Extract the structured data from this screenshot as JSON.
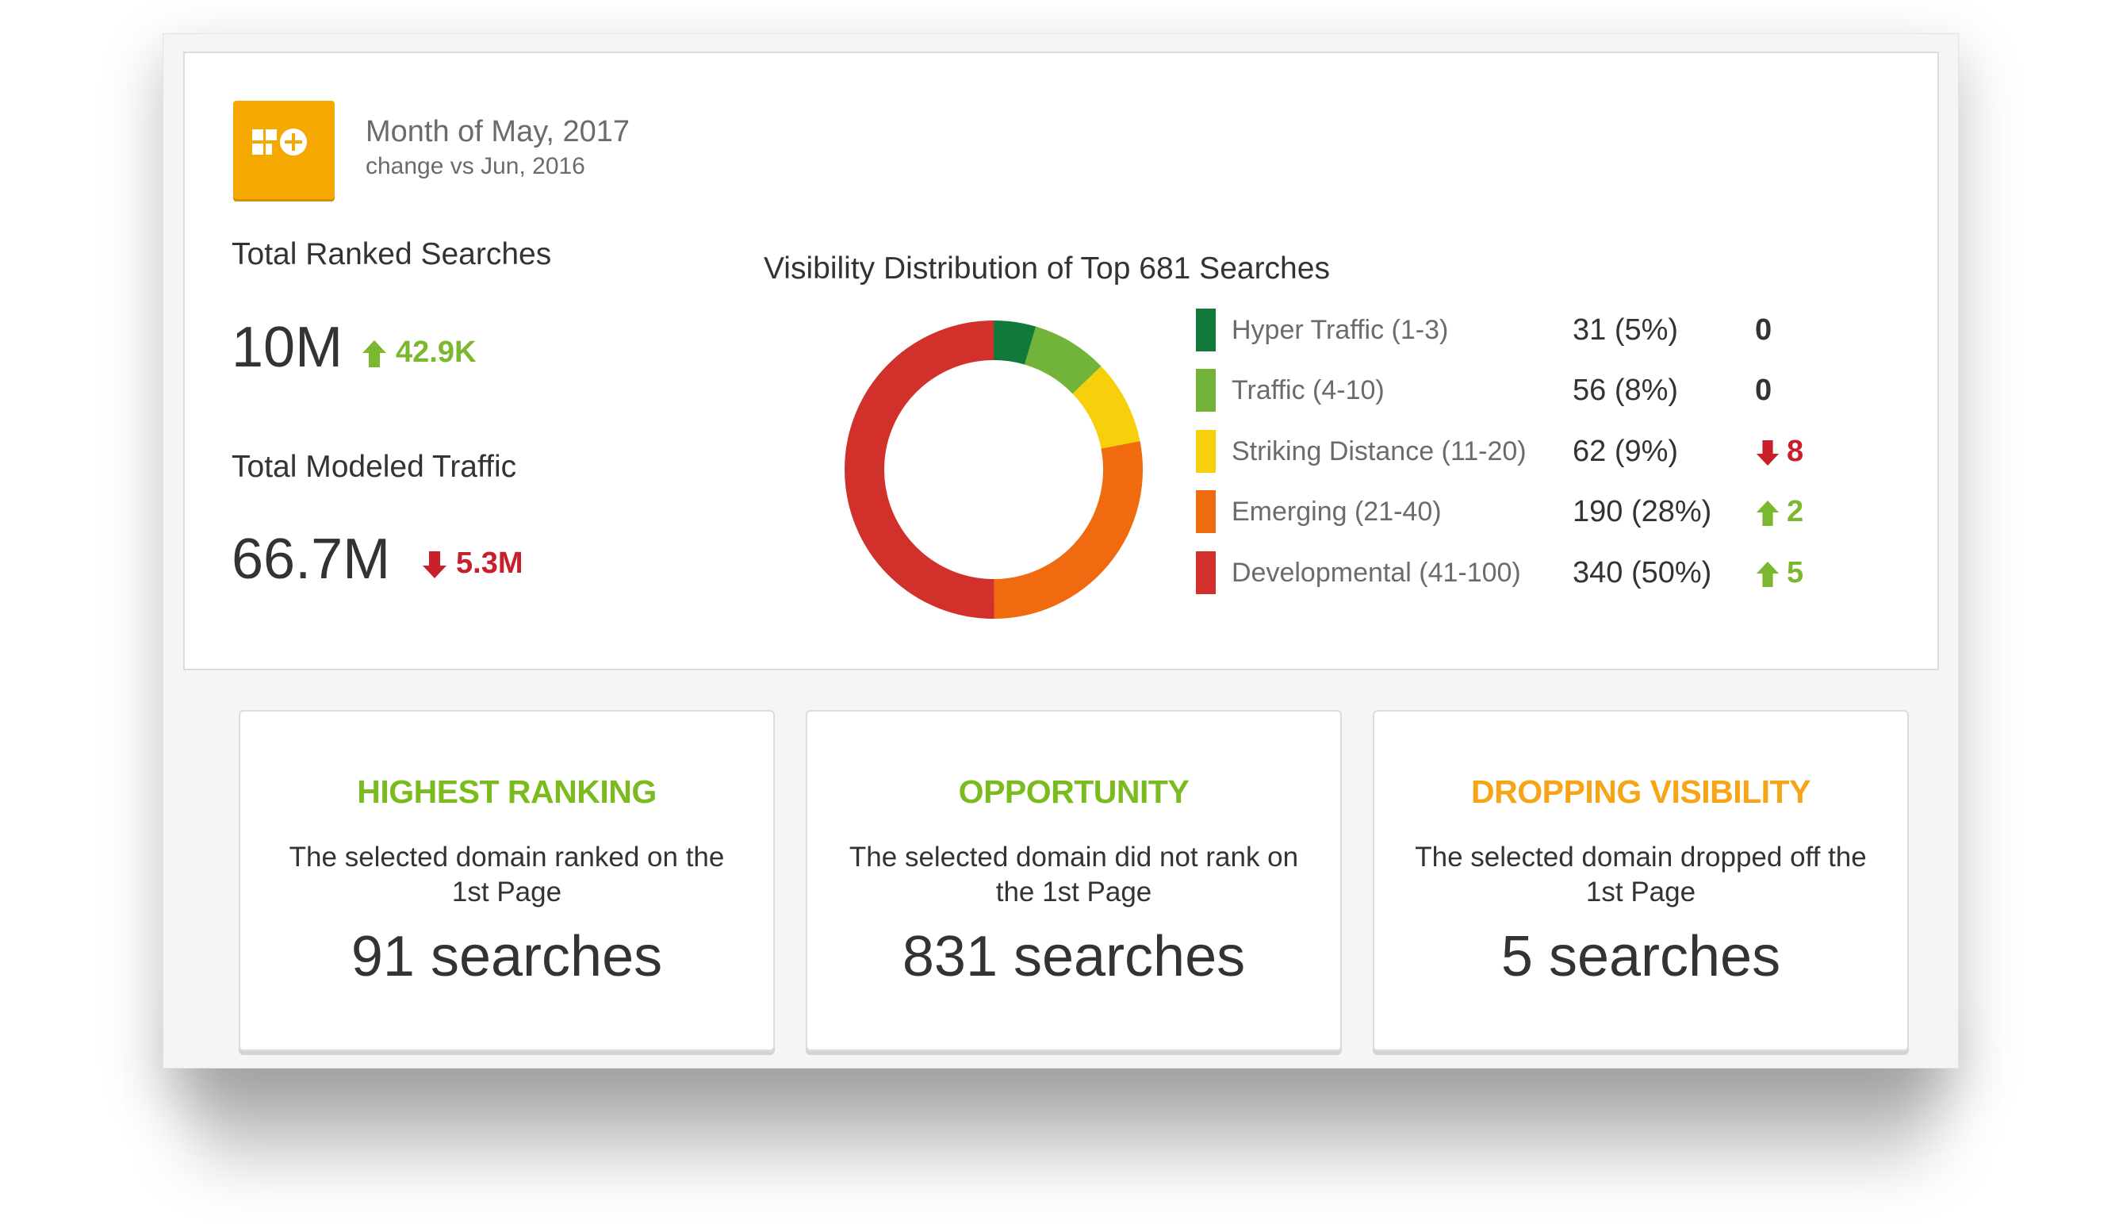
{
  "header": {
    "month": "Month of May, 2017",
    "change": "change vs Jun, 2016",
    "logo_icon": "seo-clarity-logo-icon"
  },
  "metrics": {
    "ranked": {
      "label": "Total Ranked Searches",
      "value": "10M",
      "delta": "42.9K",
      "direction": "up"
    },
    "traffic": {
      "label": "Total Modeled Traffic",
      "value": "66.7M",
      "delta": "5.3M",
      "direction": "down"
    }
  },
  "chart_data": {
    "type": "pie",
    "title": "Visibility Distribution of Top 681 Searches",
    "labels": [
      "Hyper Traffic (1-3)",
      "Traffic (4-10)",
      "Striking Distance (11-20)",
      "Emerging (21-40)",
      "Developmental (41-100)"
    ],
    "values": [
      31,
      56,
      62,
      190,
      340
    ],
    "display": [
      "31 (5%)",
      "56 (8%)",
      "62 (9%)",
      "190 (28%)",
      "340 (50%)"
    ],
    "changes": [
      "0",
      "0",
      "8",
      "2",
      "5"
    ],
    "change_dirs": [
      "none",
      "none",
      "down",
      "up",
      "up"
    ],
    "colors": [
      "#0f7a3a",
      "#72b33a",
      "#f7cf0b",
      "#f06a0f",
      "#d1312a"
    ],
    "donut": true
  },
  "cards": [
    {
      "title": "HIGHEST RANKING",
      "desc": "The selected domain ranked on the 1st Page",
      "value": "91 searches",
      "color": "#7cbb1f"
    },
    {
      "title": "OPPORTUNITY",
      "desc": "The selected domain did not rank on the 1st Page",
      "value": "831 searches",
      "color": "#7cbb1f"
    },
    {
      "title": "DROPPING VISIBILITY",
      "desc": "The selected domain dropped off the 1st Page",
      "value": "5 searches",
      "color": "#f6a418"
    }
  ],
  "colors": {
    "up": "#7cb82f",
    "down": "#c8202a",
    "logo": "#f5a800"
  }
}
